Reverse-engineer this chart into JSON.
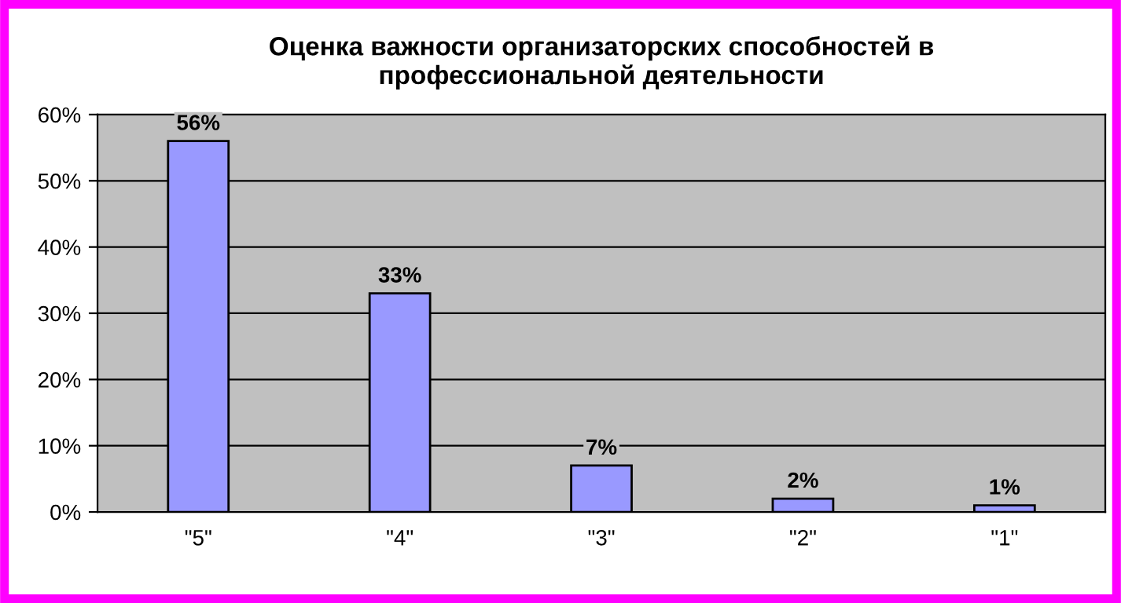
{
  "chart_data": {
    "type": "bar",
    "title": "Оценка важности организаторских способностей в\nпрофессиональной деятельности",
    "categories": [
      "\"5\"",
      "\"4\"",
      "\"3\"",
      "\"2\"",
      "\"1\""
    ],
    "values": [
      56,
      33,
      7,
      2,
      1
    ],
    "value_labels": [
      "56%",
      "33%",
      "7%",
      "2%",
      "1%"
    ],
    "color": "#9999ff",
    "ylim": [
      0,
      60
    ],
    "yticks": [
      {
        "value": 0,
        "label": "0%"
      },
      {
        "value": 10,
        "label": "10%"
      },
      {
        "value": 20,
        "label": "20%"
      },
      {
        "value": 30,
        "label": "30%"
      },
      {
        "value": 40,
        "label": "40%"
      },
      {
        "value": 50,
        "label": "50%"
      },
      {
        "value": 60,
        "label": "60%"
      }
    ],
    "grid": "y"
  }
}
